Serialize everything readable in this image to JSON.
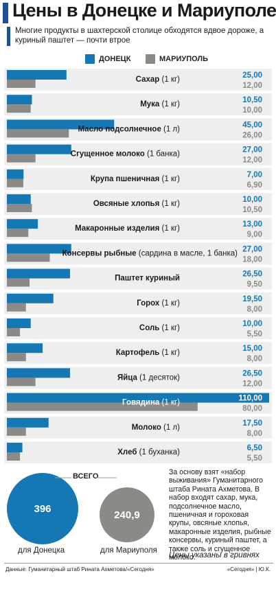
{
  "title": "Цены в Донецке и Мариуполе",
  "lead": "Многие продукты в шахтерской столице обходятся вдвое дороже, а куриный паштет — почти втрое",
  "legend": {
    "donetsk": "ДОНЕЦК",
    "mariupol": "МАРИУПОЛЬ"
  },
  "colors": {
    "donetsk": "#1577b4",
    "mariupol": "#8c8a86",
    "row_bg": "#eeeeee",
    "title_accent": "#1d4f91"
  },
  "chart_data": {
    "type": "bar",
    "orientation": "horizontal",
    "categories": [
      {
        "name": "Сахар",
        "unit": " (1 кг)"
      },
      {
        "name": "Мука",
        "unit": " (1 кг)"
      },
      {
        "name": "Масло подсолнечное",
        "unit": " (1 л)"
      },
      {
        "name": "Сгущенное молоко",
        "unit": " (1 банка)"
      },
      {
        "name": "Крупа пшеничная",
        "unit": " (1 кг)"
      },
      {
        "name": "Овсяные хлопья",
        "unit": " (1 кг)"
      },
      {
        "name": "Макаронные изделия",
        "unit": " (1 кг)"
      },
      {
        "name": "Консервы рыбные",
        "unit": " (сардина в масле, 1 банка)"
      },
      {
        "name": "Паштет куриный",
        "unit": ""
      },
      {
        "name": "Горох",
        "unit": " (1 кг)"
      },
      {
        "name": "Соль",
        "unit": " (1 кг)"
      },
      {
        "name": "Картофель",
        "unit": " (1 кг)"
      },
      {
        "name": "Яйца",
        "unit": " (1 десяток)"
      },
      {
        "name": "Говядина",
        "unit": " (1 кг)"
      },
      {
        "name": "Молоко",
        "unit": " (1 л)"
      },
      {
        "name": "Хлеб",
        "unit": " (1 буханка)"
      }
    ],
    "series": [
      {
        "name": "ДОНЕЦК",
        "values": [
          25.0,
          10.5,
          45.0,
          27.0,
          7.0,
          10.0,
          13.0,
          27.0,
          26.5,
          19.5,
          10.0,
          15.0,
          26.5,
          110.0,
          17.5,
          6.5
        ],
        "labels": [
          "25,00",
          "10,50",
          "45,00",
          "27,00",
          "7,00",
          "10,00",
          "13,00",
          "27,00",
          "26,50",
          "19,50",
          "10,00",
          "15,00",
          "26,50",
          "110,00",
          "17,50",
          "6,50"
        ]
      },
      {
        "name": "МАРИУПОЛЬ",
        "values": [
          12.0,
          10.0,
          26.0,
          12.0,
          6.9,
          10.5,
          9.0,
          18.0,
          9.5,
          8.0,
          5.5,
          8.0,
          12.0,
          80.0,
          8.0,
          5.5
        ],
        "labels": [
          "12,00",
          "10,00",
          "26,00",
          "12,00",
          "6,90",
          "10,50",
          "9,00",
          "18,00",
          "9,50",
          "8,00",
          "5,50",
          "8,00",
          "12,00",
          "80,00",
          "8,00",
          "5,50"
        ]
      }
    ],
    "highlight_category": "Говядина",
    "xlim": [
      0,
      110
    ]
  },
  "totals": {
    "heading": "ВСЕГО",
    "donetsk": {
      "value": "396",
      "label": "для Донецка"
    },
    "mariupol": {
      "value": "240,9",
      "label": "для Мариуполя"
    }
  },
  "note": "За основу взят «набор выживания» Гуманитарного штаба Рината Ахметова. В набор входят сахар, мука, подсолнечное масло, пшеничная и гороховая крупы, овсяные хлопья, макаронные изделия, рыбные консервы, куриный паштет, а также соль и сгущенное молоко.",
  "units_note": "Цены указаны в гривнях",
  "source": "Данные: Гуманитарный штаб Рината Ахметова/«Сегодня»",
  "credit": "«Сегодня» | Ю.К."
}
